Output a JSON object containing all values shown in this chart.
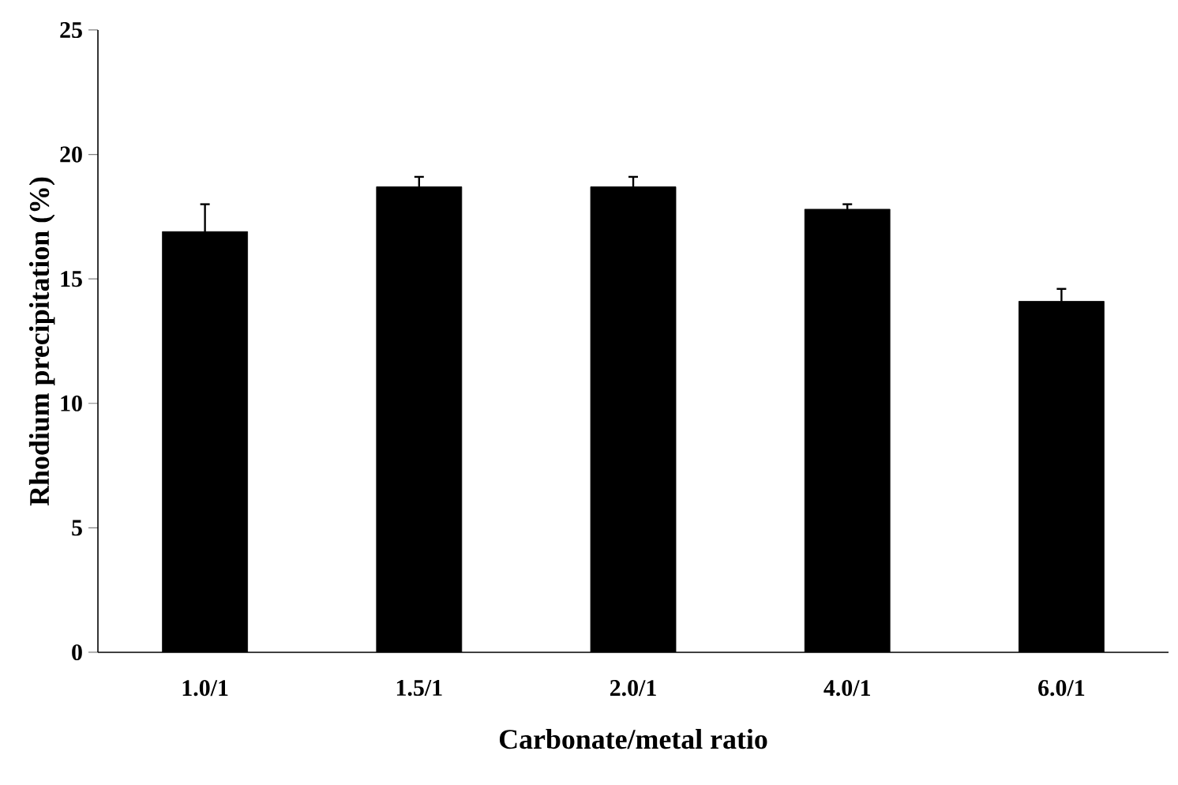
{
  "chart_data": {
    "type": "bar",
    "xlabel": "Carbonate/metal ratio",
    "ylabel": "Rhodium precipitation (%)",
    "categories": [
      "1.0/1",
      "1.5/1",
      "2.0/1",
      "4.0/1",
      "6.0/1"
    ],
    "values": [
      16.9,
      18.7,
      18.7,
      17.8,
      14.1
    ],
    "errors": [
      1.1,
      0.4,
      0.4,
      0.2,
      0.5
    ],
    "color": "#000000",
    "ylim": [
      0,
      25
    ],
    "yticks": [
      0,
      5,
      10,
      15,
      20,
      25
    ],
    "grid": false
  }
}
